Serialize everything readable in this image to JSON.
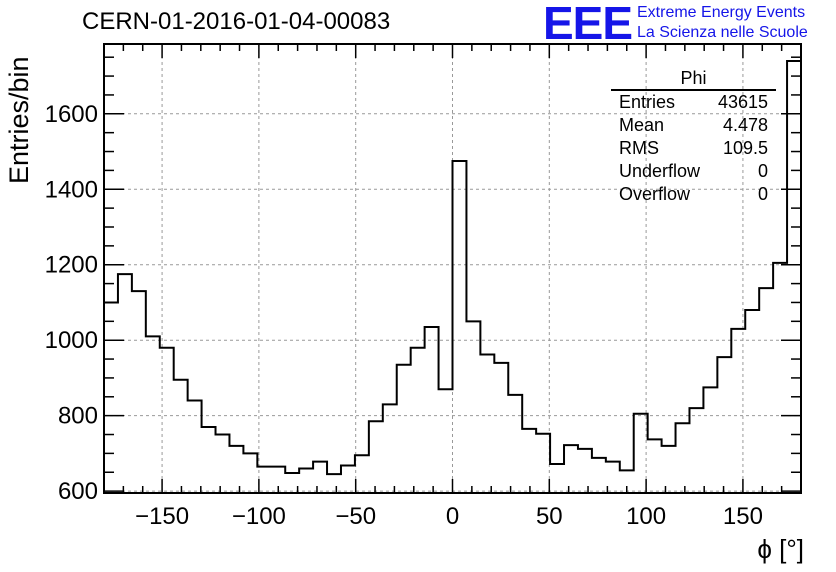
{
  "header": {
    "title": "CERN-01-2016-01-04-00083",
    "logo": "EEE",
    "logo_line1": "Extreme Energy Events",
    "logo_line2": "La Scienza nelle Scuole"
  },
  "stats": {
    "name": "Phi",
    "rows": [
      {
        "label": "Entries",
        "value": "43615"
      },
      {
        "label": "Mean",
        "value": "4.478"
      },
      {
        "label": "RMS",
        "value": "109.5"
      },
      {
        "label": "Underflow",
        "value": "0"
      },
      {
        "label": "Overflow",
        "value": "0"
      }
    ]
  },
  "chart_data": {
    "type": "bar",
    "histogram": "step",
    "title": "CERN-01-2016-01-04-00083",
    "xlabel": "ϕ [°]",
    "ylabel": "Entries/bin",
    "xlim": [
      -180,
      180
    ],
    "ylim": [
      595,
      1785
    ],
    "bin_width": 7.2,
    "x_ticks": [
      -150,
      -100,
      -50,
      0,
      50,
      100,
      150
    ],
    "y_ticks": [
      600,
      800,
      1000,
      1200,
      1400,
      1600
    ],
    "grid": true,
    "values": [
      1100,
      1175,
      1130,
      1010,
      980,
      895,
      840,
      770,
      750,
      720,
      700,
      665,
      665,
      648,
      660,
      678,
      645,
      668,
      695,
      785,
      830,
      935,
      980,
      1035,
      870,
      1475,
      1050,
      962,
      940,
      855,
      765,
      752,
      672,
      722,
      712,
      688,
      678,
      655,
      805,
      737,
      720,
      780,
      820,
      875,
      955,
      1030,
      1080,
      1138,
      1205,
      1740
    ]
  }
}
